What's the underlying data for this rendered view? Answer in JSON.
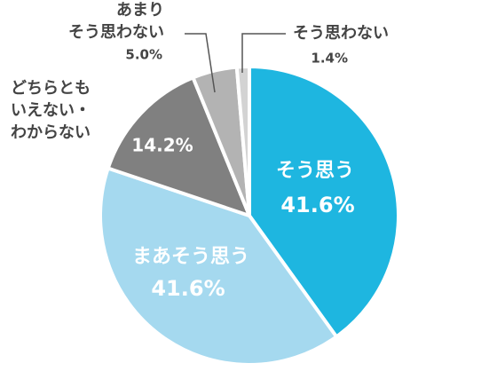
{
  "chart_data": {
    "type": "pie",
    "categories": [
      [
        "そう思う"
      ],
      [
        "まあそう思う"
      ],
      [
        "どちらとも",
        "いえない・",
        "わからない"
      ],
      [
        "あまり",
        "そう思わない"
      ],
      [
        "そう思わない"
      ]
    ],
    "values": [
      41.6,
      41.6,
      14.2,
      5.0,
      1.4
    ],
    "value_labels": [
      "41.6%",
      "41.6%",
      "14.2%",
      "5.0%",
      "1.4%"
    ],
    "colors": [
      "#1eb6e0",
      "#a5d9ef",
      "#808080",
      "#b3b3b3",
      "#d3d3d3"
    ]
  }
}
